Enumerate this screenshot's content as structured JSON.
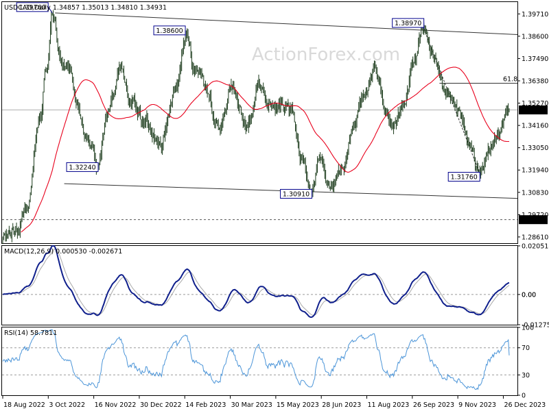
{
  "header": {
    "symbol_line": "USDCAD,Daily  1.34857 1.35013 1.34810 1.34931",
    "watermark": "ActionForex.com"
  },
  "chart_data": [
    {
      "type": "candlestick",
      "name": "price-panel",
      "title": "USDCAD,Daily  1.34857 1.35013 1.34810 1.34931",
      "ylim": [
        1.283,
        1.403
      ],
      "y_ticks": [
        "1.39710",
        "1.38600",
        "1.37490",
        "1.36380",
        "1.35270",
        "1.34160",
        "1.33050",
        "1.31940",
        "1.30830",
        "1.29720",
        "1.28610"
      ],
      "x_ticks": [
        "18 Aug 2022",
        "3 Oct 2022",
        "16 Nov 2022",
        "30 Dec 2022",
        "14 Feb 2023",
        "30 Mar 2023",
        "15 May 2023",
        "28 Jun 2023",
        "11 Aug 2023",
        "26 Sep 2023",
        "9 Nov 2023",
        "26 Dec 2023"
      ],
      "last_price": "1.34931",
      "last_price_value": 1.34931,
      "fib_label": "61.8",
      "fib_level": 1.3626,
      "support_label": "1.29470",
      "support_value": 1.2947,
      "annotations": [
        {
          "text": "1.39760",
          "t": 54,
          "v": 1.3976
        },
        {
          "text": "1.38600",
          "t": 199,
          "v": 1.386
        },
        {
          "text": "1.32240",
          "t": 104,
          "v": 1.3224
        },
        {
          "text": "1.30910",
          "t": 337,
          "v": 1.3091
        },
        {
          "text": "1.38970",
          "t": 459,
          "v": 1.3897
        },
        {
          "text": "1.31760",
          "t": 520,
          "v": 1.3176
        }
      ],
      "trend_lines": [
        {
          "name": "upper-channel",
          "t1": 57,
          "v1": 1.3976,
          "t2": 560,
          "v2": 1.3868
        },
        {
          "name": "lower-channel",
          "t1": 67,
          "v1": 1.3126,
          "t2": 560,
          "v2": 1.3053
        },
        {
          "name": "swing-line",
          "t1": 459,
          "v1": 1.3897,
          "t2": 520,
          "v2": 1.3176
        }
      ],
      "anchors": [
        [
          0,
          1.286
        ],
        [
          15,
          1.29
        ],
        [
          27,
          1.3
        ],
        [
          40,
          1.345
        ],
        [
          48,
          1.37
        ],
        [
          54,
          1.3976
        ],
        [
          63,
          1.375
        ],
        [
          72,
          1.37
        ],
        [
          82,
          1.35
        ],
        [
          92,
          1.335
        ],
        [
          104,
          1.3224
        ],
        [
          115,
          1.35
        ],
        [
          128,
          1.37
        ],
        [
          140,
          1.352
        ],
        [
          155,
          1.343
        ],
        [
          172,
          1.332
        ],
        [
          190,
          1.36
        ],
        [
          199,
          1.386
        ],
        [
          210,
          1.37
        ],
        [
          222,
          1.36
        ],
        [
          235,
          1.34
        ],
        [
          250,
          1.36
        ],
        [
          266,
          1.34
        ],
        [
          280,
          1.362
        ],
        [
          290,
          1.352
        ],
        [
          302,
          1.35
        ],
        [
          315,
          1.35
        ],
        [
          325,
          1.325
        ],
        [
          337,
          1.3091
        ],
        [
          346,
          1.325
        ],
        [
          356,
          1.31
        ],
        [
          370,
          1.32
        ],
        [
          382,
          1.34
        ],
        [
          394,
          1.356
        ],
        [
          406,
          1.37
        ],
        [
          416,
          1.35
        ],
        [
          426,
          1.34
        ],
        [
          438,
          1.352
        ],
        [
          449,
          1.375
        ],
        [
          459,
          1.3897
        ],
        [
          471,
          1.375
        ],
        [
          481,
          1.36
        ],
        [
          496,
          1.35
        ],
        [
          508,
          1.332
        ],
        [
          520,
          1.3176
        ],
        [
          530,
          1.33
        ],
        [
          540,
          1.338
        ],
        [
          549,
          1.3485
        ],
        [
          552,
          1.34931
        ]
      ]
    },
    {
      "type": "line",
      "name": "macd-panel",
      "title": "MACD(12,26,9) 0.000530 -0.002671",
      "ylim": [
        -0.01275,
        0.0205
      ],
      "y_ticks": [
        "0.020518",
        "0.00",
        "-0.012755"
      ],
      "value_labels": [
        "0.00",
        "0.00"
      ]
    },
    {
      "type": "line",
      "name": "rsi-panel",
      "title": "RSI(14) 58.7811",
      "ylim": [
        0,
        100
      ],
      "y_ticks": [
        "100",
        "70",
        "30",
        "0"
      ]
    }
  ],
  "colors": {
    "candle": "#1a3a1a",
    "ma": "#e8001c",
    "macd": "#0f1f8c",
    "signal": "#a8a8a8",
    "rsi": "#4a94d8",
    "label_box": "#00008b",
    "grid_dash": "#999999"
  }
}
